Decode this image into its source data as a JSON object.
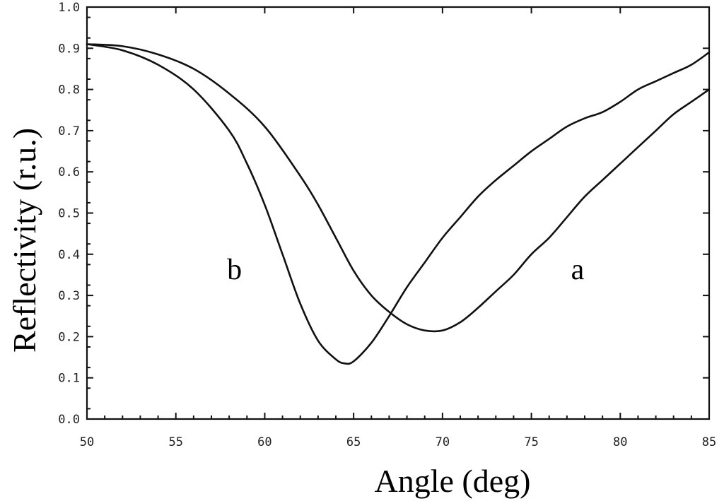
{
  "chart_data": {
    "type": "line",
    "xlabel": "Angle (deg)",
    "ylabel": "Reflectivity (r.u.)",
    "xlim": [
      50,
      85
    ],
    "ylim": [
      0.0,
      1.0
    ],
    "x_ticks": [
      "50",
      "55",
      "60",
      "65",
      "70",
      "75",
      "80",
      "85"
    ],
    "y_ticks": [
      "0.0",
      "0.1",
      "0.2",
      "0.3",
      "0.4",
      "0.5",
      "0.6",
      "0.7",
      "0.8",
      "0.9",
      "1.0"
    ],
    "grid": false,
    "series": [
      {
        "name": "a",
        "label_position": [
          77.6,
          0.34
        ],
        "x": [
          50,
          52,
          54,
          56,
          58,
          60,
          62,
          63,
          64,
          65,
          66,
          67,
          68,
          69,
          70,
          71,
          72,
          73,
          74,
          75,
          76,
          77,
          78,
          79,
          80,
          81,
          82,
          83,
          84,
          85
        ],
        "y": [
          0.91,
          0.905,
          0.885,
          0.85,
          0.79,
          0.71,
          0.59,
          0.52,
          0.44,
          0.36,
          0.3,
          0.26,
          0.23,
          0.215,
          0.215,
          0.235,
          0.27,
          0.31,
          0.35,
          0.4,
          0.44,
          0.49,
          0.54,
          0.58,
          0.62,
          0.66,
          0.7,
          0.74,
          0.77,
          0.8
        ]
      },
      {
        "name": "b",
        "label_position": [
          58.3,
          0.34
        ],
        "x": [
          50,
          52,
          54,
          56,
          58,
          59,
          60,
          61,
          62,
          63,
          64,
          64.5,
          65,
          66,
          67,
          68,
          69,
          70,
          71,
          72,
          73,
          74,
          75,
          76,
          77,
          78,
          79,
          80,
          81,
          82,
          83,
          84,
          85
        ],
        "y": [
          0.91,
          0.895,
          0.86,
          0.8,
          0.7,
          0.62,
          0.52,
          0.4,
          0.28,
          0.19,
          0.145,
          0.135,
          0.14,
          0.185,
          0.25,
          0.32,
          0.38,
          0.44,
          0.49,
          0.54,
          0.58,
          0.615,
          0.65,
          0.68,
          0.71,
          0.73,
          0.745,
          0.77,
          0.8,
          0.82,
          0.84,
          0.86,
          0.89
        ]
      }
    ]
  }
}
